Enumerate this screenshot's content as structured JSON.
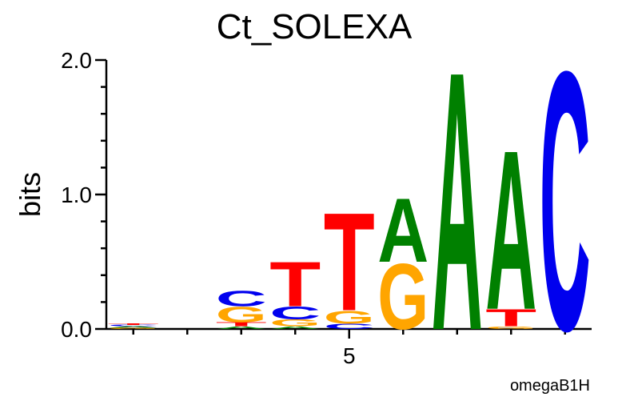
{
  "chart_data": {
    "type": "sequence-logo",
    "title": "Ct_SOLEXA",
    "ylabel": "bits",
    "ylim": [
      0,
      2
    ],
    "yticks": [
      "0.0",
      "1.0",
      "2.0"
    ],
    "xtick_labels": [
      {
        "position": 5,
        "label": "5"
      }
    ],
    "footer": "omegaB1H",
    "colors": {
      "A": "#008000",
      "C": "#0000ee",
      "G": "#ffa500",
      "T": "#ff0000"
    },
    "positions": [
      {
        "position": 1,
        "letters": [
          [
            "G",
            0.01
          ],
          [
            "A",
            0.01
          ],
          [
            "C",
            0.01
          ],
          [
            "T",
            0.01
          ]
        ]
      },
      {
        "position": 2,
        "letters": []
      },
      {
        "position": 3,
        "letters": [
          [
            "A",
            0.02
          ],
          [
            "T",
            0.03
          ],
          [
            "G",
            0.12
          ],
          [
            "C",
            0.12
          ]
        ]
      },
      {
        "position": 4,
        "letters": [
          [
            "A",
            0.02
          ],
          [
            "G",
            0.05
          ],
          [
            "C",
            0.1
          ],
          [
            "T",
            0.34
          ]
        ]
      },
      {
        "position": 5,
        "letters": [
          [
            "C",
            0.04
          ],
          [
            "G",
            0.1
          ],
          [
            "T",
            0.75
          ]
        ]
      },
      {
        "position": 6,
        "letters": [
          [
            "G",
            0.5
          ],
          [
            "A",
            0.49
          ]
        ]
      },
      {
        "position": 7,
        "letters": [
          [
            "A",
            1.98
          ]
        ]
      },
      {
        "position": 8,
        "letters": [
          [
            "G",
            0.02
          ],
          [
            "T",
            0.13
          ],
          [
            "A",
            1.22
          ]
        ]
      },
      {
        "position": 9,
        "letters": [
          [
            "C",
            1.98
          ]
        ]
      }
    ]
  }
}
